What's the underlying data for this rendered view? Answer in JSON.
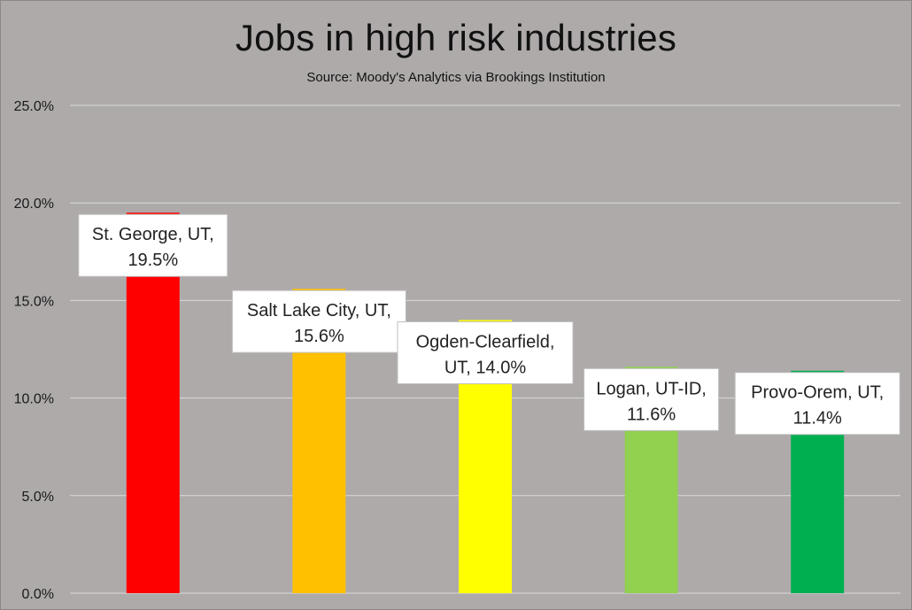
{
  "chart_data": {
    "type": "bar",
    "title": "Jobs in high risk industries",
    "subtitle": "Source: Moody's Analytics via Brookings Institution",
    "xlabel": "",
    "ylabel": "",
    "ylim": [
      0,
      25
    ],
    "y_ticks": [
      "0.0%",
      "5.0%",
      "10.0%",
      "15.0%",
      "20.0%",
      "25.0%"
    ],
    "grid": true,
    "categories": [
      "St. George, UT",
      "Salt Lake City, UT",
      "Ogden-Clearfield, UT",
      "Logan, UT-ID",
      "Provo-Orem, UT"
    ],
    "values": [
      19.5,
      15.6,
      14.0,
      11.6,
      11.4
    ],
    "colors": [
      "#ff0000",
      "#ffc000",
      "#ffff00",
      "#92d050",
      "#00b050"
    ],
    "data_labels": [
      [
        "St. George, UT,",
        "19.5%"
      ],
      [
        "Salt Lake City, UT,",
        "15.6%"
      ],
      [
        "Ogden-Clearfield,",
        "UT, 14.0%"
      ],
      [
        "Logan, UT-ID,",
        "11.6%"
      ],
      [
        "Provo-Orem, UT,",
        "11.4%"
      ]
    ],
    "background": "#aeaaaa",
    "gridline_color": "#d9d9d9"
  }
}
